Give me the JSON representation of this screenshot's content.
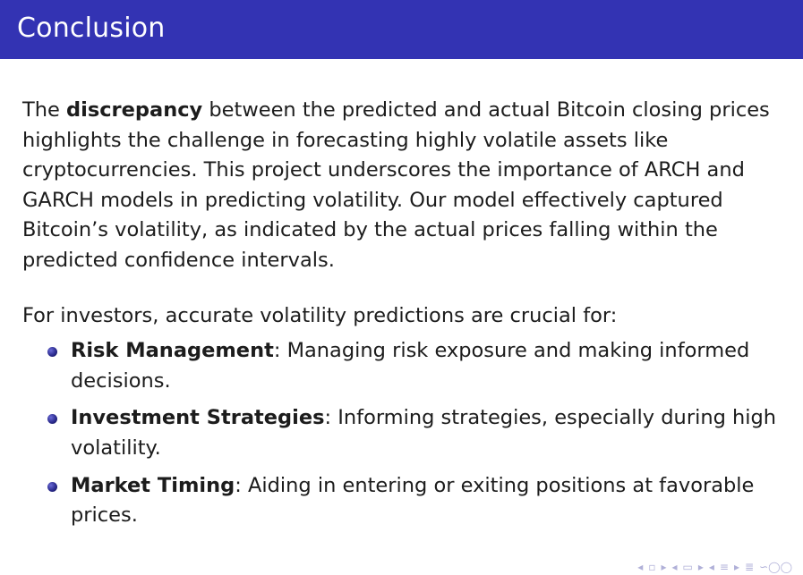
{
  "slide": {
    "title": "Conclusion"
  },
  "paragraph1": {
    "lead": "The ",
    "bold": "discrepancy",
    "rest": " between the predicted and actual Bitcoin closing prices highlights the challenge in forecasting highly volatile assets like cryptocurrencies.  This project underscores the importance of ARCH and GARCH models in predicting volatility.  Our model effectively captured Bitcoin’s volatility, as indicated by the actual prices falling within the predicted confidence intervals."
  },
  "paragraph2": {
    "text": "For investors, accurate volatility predictions are crucial for:"
  },
  "bullets": [
    {
      "term": "Risk Management",
      "desc": ": Managing risk exposure and making informed decisions."
    },
    {
      "term": "Investment Strategies",
      "desc": ": Informing strategies, especially during high volatility."
    },
    {
      "term": "Market Timing",
      "desc": ": Aiding in entering or exiting positions at favorable prices."
    }
  ],
  "navigation": {
    "icons": [
      "prev-frame-icon",
      "frame-icon",
      "next-frame-icon",
      "prev-subsection-icon",
      "subsection-icon",
      "next-subsection-icon",
      "prev-section-icon",
      "section-icon",
      "next-section-icon",
      "align-icon",
      "search-icon"
    ],
    "glyphs": [
      "◂",
      "▫",
      "▸",
      "◂",
      "▭",
      "▸",
      "◂",
      "≡",
      "▸",
      "≣",
      "∽◯◯"
    ]
  },
  "colors": {
    "title_bar": "#3333b3",
    "title_text": "#ffffff",
    "bullet": "#2b2b8f",
    "nav": "#b0b0d8"
  }
}
